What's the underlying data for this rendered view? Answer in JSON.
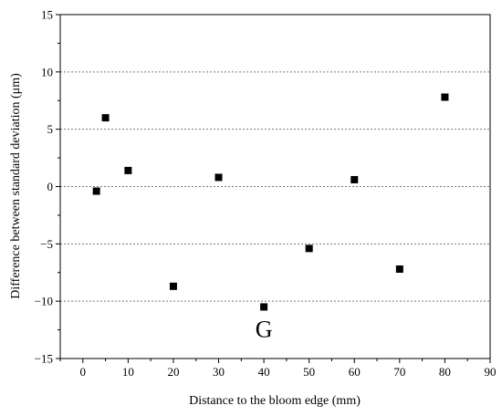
{
  "chart_data": {
    "type": "scatter",
    "title": "",
    "xlabel": "Distance to the bloom edge (mm)",
    "ylabel": "Difference between standard deviation (μm)",
    "xlim": [
      -5,
      90
    ],
    "ylim": [
      -15,
      15
    ],
    "xticks": [
      0,
      10,
      20,
      30,
      40,
      50,
      60,
      70,
      80,
      90
    ],
    "yticks": [
      -15,
      -10,
      -5,
      0,
      5,
      10,
      15
    ],
    "grid": "horizontal-dotted",
    "marker": "square",
    "marker_color": "#000000",
    "points": [
      {
        "x": 3,
        "y": -0.4
      },
      {
        "x": 5,
        "y": 6.0
      },
      {
        "x": 10,
        "y": 1.4
      },
      {
        "x": 20,
        "y": -8.7
      },
      {
        "x": 30,
        "y": 0.8
      },
      {
        "x": 40,
        "y": -10.5
      },
      {
        "x": 50,
        "y": -5.4
      },
      {
        "x": 60,
        "y": 0.6
      },
      {
        "x": 70,
        "y": -7.2
      },
      {
        "x": 80,
        "y": 7.8
      }
    ],
    "annotations": [
      {
        "text": "G",
        "x": 40,
        "y": -12.4
      }
    ]
  }
}
